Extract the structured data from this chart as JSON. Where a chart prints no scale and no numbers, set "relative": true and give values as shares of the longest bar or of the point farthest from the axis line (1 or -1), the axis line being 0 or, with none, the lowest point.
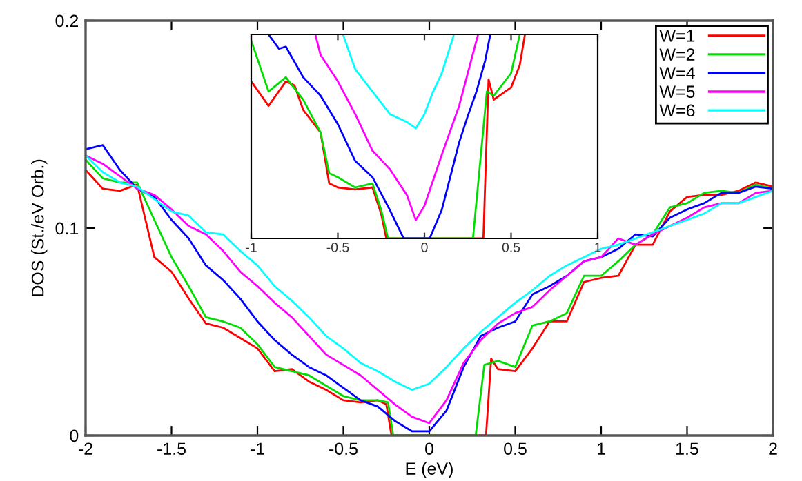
{
  "chart_data": [
    {
      "type": "line",
      "xlabel": "E (eV)",
      "ylabel": "DOS (St./eV Orb.)",
      "xlim": [
        -2,
        2
      ],
      "ylim": [
        0,
        0.2
      ],
      "xticks": [
        -2,
        -1.5,
        -1,
        -0.5,
        0,
        0.5,
        1,
        1.5,
        2
      ],
      "yticks": [
        0,
        0.1,
        0.2
      ],
      "grid": false,
      "legend": "top right",
      "marker": "none",
      "line_style": "solid",
      "series": [
        {
          "name": "W=1",
          "color": "#ff0000",
          "x": [
            -2,
            -1.9,
            -1.8,
            -1.7,
            -1.6,
            -1.5,
            -1.4,
            -1.3,
            -1.2,
            -1.1,
            -1,
            -0.9,
            -0.8,
            -0.7,
            -0.6,
            -0.5,
            -0.4,
            -0.3,
            -0.25,
            -0.22,
            0,
            0.33,
            0.36,
            0.4,
            0.5,
            0.6,
            0.7,
            0.8,
            0.9,
            1,
            1.1,
            1.2,
            1.3,
            1.4,
            1.5,
            1.6,
            1.7,
            1.8,
            1.9,
            2
          ],
          "values": [
            0.128,
            0.119,
            0.118,
            0.121,
            0.086,
            0.079,
            0.066,
            0.054,
            0.052,
            0.047,
            0.042,
            0.031,
            0.032,
            0.026,
            0.022,
            0.017,
            0.016,
            0.017,
            0.015,
            0,
            0,
            0,
            0.037,
            0.032,
            0.031,
            0.042,
            0.055,
            0.055,
            0.074,
            0.076,
            0.077,
            0.092,
            0.092,
            0.108,
            0.115,
            0.116,
            0.116,
            0.118,
            0.122,
            0.12
          ]
        },
        {
          "name": "W=2",
          "color": "#00dd00",
          "x": [
            -2,
            -1.9,
            -1.8,
            -1.7,
            -1.6,
            -1.5,
            -1.4,
            -1.3,
            -1.2,
            -1.1,
            -1,
            -0.9,
            -0.8,
            -0.7,
            -0.6,
            -0.5,
            -0.4,
            -0.3,
            -0.24,
            -0.21,
            0,
            0.27,
            0.32,
            0.4,
            0.5,
            0.6,
            0.7,
            0.8,
            0.9,
            1,
            1.1,
            1.2,
            1.3,
            1.4,
            1.5,
            1.6,
            1.7,
            1.8,
            1.9,
            2
          ],
          "values": [
            0.133,
            0.124,
            0.122,
            0.122,
            0.104,
            0.086,
            0.072,
            0.057,
            0.055,
            0.052,
            0.044,
            0.033,
            0.031,
            0.029,
            0.024,
            0.019,
            0.017,
            0.017,
            0.016,
            0,
            0,
            0,
            0.034,
            0.036,
            0.033,
            0.053,
            0.055,
            0.059,
            0.077,
            0.077,
            0.084,
            0.092,
            0.097,
            0.11,
            0.112,
            0.117,
            0.118,
            0.117,
            0.121,
            0.119
          ]
        },
        {
          "name": "W=4",
          "color": "#0000ff",
          "x": [
            -2,
            -1.9,
            -1.8,
            -1.7,
            -1.6,
            -1.5,
            -1.4,
            -1.3,
            -1.2,
            -1.1,
            -1,
            -0.9,
            -0.8,
            -0.7,
            -0.6,
            -0.5,
            -0.4,
            -0.3,
            -0.2,
            -0.1,
            0,
            0.1,
            0.2,
            0.3,
            0.4,
            0.5,
            0.6,
            0.7,
            0.8,
            0.9,
            1,
            1.1,
            1.2,
            1.3,
            1.4,
            1.5,
            1.6,
            1.7,
            1.8,
            1.9,
            2
          ],
          "values": [
            0.138,
            0.14,
            0.128,
            0.119,
            0.115,
            0.104,
            0.095,
            0.082,
            0.075,
            0.066,
            0.055,
            0.046,
            0.039,
            0.033,
            0.029,
            0.023,
            0.017,
            0.014,
            0.007,
            0.002,
            0.002,
            0.012,
            0.033,
            0.048,
            0.052,
            0.055,
            0.068,
            0.072,
            0.077,
            0.084,
            0.086,
            0.09,
            0.097,
            0.096,
            0.105,
            0.109,
            0.112,
            0.117,
            0.117,
            0.12,
            0.119
          ]
        },
        {
          "name": "W=5",
          "color": "#ff00ff",
          "x": [
            -2,
            -1.9,
            -1.8,
            -1.7,
            -1.6,
            -1.5,
            -1.4,
            -1.3,
            -1.2,
            -1.1,
            -1,
            -0.9,
            -0.8,
            -0.7,
            -0.6,
            -0.5,
            -0.4,
            -0.3,
            -0.2,
            -0.1,
            0,
            0.1,
            0.2,
            0.3,
            0.4,
            0.5,
            0.6,
            0.7,
            0.8,
            0.9,
            1,
            1.1,
            1.2,
            1.3,
            1.4,
            1.5,
            1.6,
            1.7,
            1.8,
            1.9,
            2
          ],
          "values": [
            0.135,
            0.131,
            0.125,
            0.119,
            0.116,
            0.109,
            0.101,
            0.097,
            0.089,
            0.079,
            0.072,
            0.064,
            0.057,
            0.048,
            0.039,
            0.034,
            0.029,
            0.022,
            0.015,
            0.009,
            0.006,
            0.017,
            0.035,
            0.046,
            0.054,
            0.059,
            0.062,
            0.07,
            0.077,
            0.084,
            0.086,
            0.095,
            0.092,
            0.097,
            0.101,
            0.105,
            0.11,
            0.112,
            0.112,
            0.117,
            0.118
          ]
        },
        {
          "name": "W=6",
          "color": "#00ffff",
          "x": [
            -2,
            -1.9,
            -1.8,
            -1.7,
            -1.6,
            -1.5,
            -1.4,
            -1.3,
            -1.2,
            -1.1,
            -1,
            -0.9,
            -0.8,
            -0.7,
            -0.6,
            -0.5,
            -0.4,
            -0.3,
            -0.2,
            -0.1,
            0,
            0.1,
            0.2,
            0.3,
            0.4,
            0.5,
            0.6,
            0.7,
            0.8,
            0.9,
            1,
            1.1,
            1.2,
            1.3,
            1.4,
            1.5,
            1.6,
            1.7,
            1.8,
            1.9,
            2
          ],
          "values": [
            0.135,
            0.127,
            0.122,
            0.12,
            0.114,
            0.108,
            0.106,
            0.098,
            0.097,
            0.089,
            0.082,
            0.072,
            0.065,
            0.057,
            0.048,
            0.042,
            0.035,
            0.031,
            0.026,
            0.022,
            0.025,
            0.033,
            0.042,
            0.05,
            0.057,
            0.064,
            0.07,
            0.077,
            0.082,
            0.086,
            0.09,
            0.092,
            0.095,
            0.098,
            0.101,
            0.104,
            0.107,
            0.112,
            0.112,
            0.115,
            0.118
          ]
        }
      ]
    },
    {
      "type": "line",
      "relative": true,
      "xlim": [
        -1,
        1
      ],
      "xticks": [
        -1,
        -0.5,
        0,
        0.5,
        1
      ],
      "grid": false,
      "marker": "none",
      "line_style": "solid",
      "series": [
        {
          "color": "#ff0000",
          "x": [
            -1,
            -0.9,
            -0.8,
            -0.75,
            -0.7,
            -0.6,
            -0.55,
            -0.5,
            -0.4,
            -0.3,
            -0.25,
            -0.22,
            0,
            0.34,
            0.37,
            0.4,
            0.5,
            0.55,
            0.58
          ],
          "values": [
            0.77,
            0.65,
            0.77,
            0.75,
            0.63,
            0.52,
            0.27,
            0.25,
            0.24,
            0.25,
            0.12,
            0,
            0,
            0,
            0.78,
            0.68,
            0.74,
            0.85,
            1
          ]
        },
        {
          "color": "#00dd00",
          "x": [
            -1,
            -0.9,
            -0.8,
            -0.7,
            -0.6,
            -0.55,
            -0.5,
            -0.4,
            -0.3,
            -0.25,
            -0.21,
            0,
            0.28,
            0.36,
            0.4,
            0.5,
            0.55
          ],
          "values": [
            0.97,
            0.72,
            0.79,
            0.68,
            0.52,
            0.32,
            0.3,
            0.25,
            0.27,
            0.14,
            0,
            0,
            0,
            0.72,
            0.7,
            0.81,
            1
          ]
        },
        {
          "color": "#0000ff",
          "x": [
            -0.9,
            -0.84,
            -0.8,
            -0.7,
            -0.6,
            -0.5,
            -0.4,
            -0.3,
            -0.2,
            -0.12,
            0.03,
            0.1,
            0.2,
            0.25,
            0.3,
            0.35,
            0.38
          ],
          "values": [
            1,
            0.93,
            0.94,
            0.79,
            0.7,
            0.56,
            0.38,
            0.3,
            0.14,
            0,
            0,
            0.14,
            0.47,
            0.6,
            0.72,
            0.87,
            1
          ]
        },
        {
          "color": "#ff00ff",
          "x": [
            -0.63,
            -0.6,
            -0.5,
            -0.4,
            -0.3,
            -0.2,
            -0.1,
            -0.05,
            0,
            0.1,
            0.2,
            0.3,
            0.31
          ],
          "values": [
            1,
            0.9,
            0.77,
            0.61,
            0.43,
            0.34,
            0.21,
            0.09,
            0.16,
            0.41,
            0.65,
            0.97,
            1
          ]
        },
        {
          "color": "#00ffff",
          "x": [
            -0.47,
            -0.4,
            -0.3,
            -0.2,
            -0.1,
            -0.05,
            0,
            0.05,
            0.1,
            0.17
          ],
          "values": [
            1,
            0.83,
            0.72,
            0.61,
            0.57,
            0.54,
            0.61,
            0.72,
            0.81,
            1
          ]
        }
      ]
    }
  ]
}
